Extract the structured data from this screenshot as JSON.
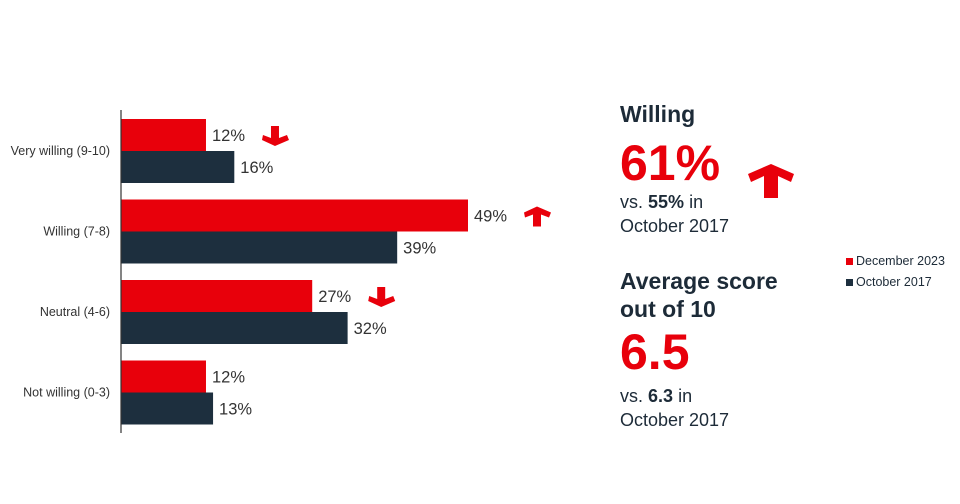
{
  "chart_data": {
    "type": "bar",
    "orientation": "horizontal",
    "categories": [
      "Very willing (9-10)",
      "Willing (7-8)",
      "Neutral (4-6)",
      "Not willing (0-3)"
    ],
    "series": [
      {
        "name": "December 2023",
        "color": "#e8000b",
        "values": [
          12,
          49,
          27,
          12
        ],
        "labels": [
          "12%",
          "49%",
          "27%",
          "12%"
        ],
        "trend": [
          "down",
          "up",
          "down",
          null
        ]
      },
      {
        "name": "October 2017",
        "color": "#1d2f3e",
        "values": [
          16,
          39,
          32,
          13
        ],
        "labels": [
          "16%",
          "39%",
          "32%",
          "13%"
        ]
      }
    ],
    "xlim": [
      0,
      50
    ],
    "grid": false,
    "legend": "right"
  },
  "panel": {
    "willing_title": "Willing",
    "willing_value": "61%",
    "willing_trend": "up",
    "willing_vs_prefix": "vs.",
    "willing_vs_value": "55%",
    "willing_vs_suffix": "in",
    "willing_vs_period": "October 2017",
    "avg_title_line1": "Average score",
    "avg_title_line2": "out of 10",
    "avg_value": "6.5",
    "avg_vs_prefix": "vs.",
    "avg_vs_value": "6.3",
    "avg_vs_suffix": "in",
    "avg_vs_period": "October 2017"
  },
  "legend": [
    {
      "label": "December 2023",
      "color": "#e8000b"
    },
    {
      "label": "October 2017",
      "color": "#1d2f3e"
    }
  ]
}
